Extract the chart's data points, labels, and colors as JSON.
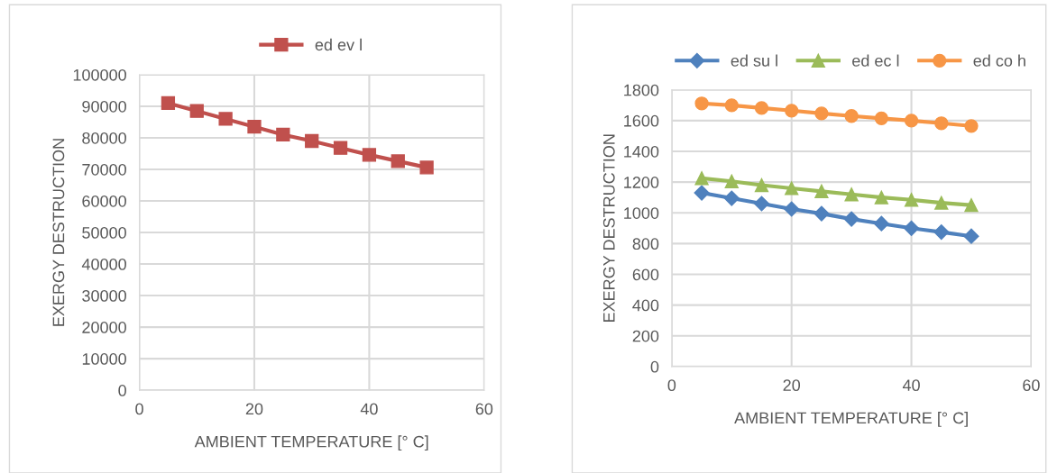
{
  "chart_data": [
    {
      "type": "line",
      "xlabel": "AMBIENT TEMPERATURE [° C]",
      "ylabel": "EXERGY DESTRUCTION",
      "x": [
        5,
        10,
        15,
        20,
        25,
        30,
        35,
        40,
        45,
        50
      ],
      "series": [
        {
          "name": "ed ev l",
          "color": "#c0504d",
          "marker": "square",
          "values": [
            91000,
            88500,
            86000,
            83500,
            81000,
            79000,
            76800,
            74600,
            72600,
            70600
          ]
        }
      ],
      "xlim": [
        0,
        60
      ],
      "xticks": [
        0,
        20,
        40,
        60
      ],
      "ylim": [
        0,
        100000
      ],
      "yticks": [
        0,
        10000,
        20000,
        30000,
        40000,
        50000,
        60000,
        70000,
        80000,
        90000,
        100000
      ],
      "grid": true,
      "legend": "top",
      "line_style": "solid"
    },
    {
      "type": "line",
      "xlabel": "AMBIENT TEMPERATURE [° C]",
      "ylabel": "EXERGY DESTRUCTION",
      "x": [
        5,
        10,
        15,
        20,
        25,
        30,
        35,
        40,
        45,
        50
      ],
      "series": [
        {
          "name": "ed su l",
          "color": "#4f81bd",
          "marker": "diamond",
          "values": [
            1130,
            1095,
            1060,
            1025,
            995,
            960,
            930,
            900,
            875,
            848
          ]
        },
        {
          "name": "ed ec l",
          "color": "#9bbb59",
          "marker": "triangle",
          "values": [
            1225,
            1205,
            1180,
            1160,
            1140,
            1120,
            1100,
            1085,
            1065,
            1050
          ]
        },
        {
          "name": "ed co h",
          "color": "#f79646",
          "marker": "circle",
          "values": [
            1712,
            1700,
            1682,
            1665,
            1647,
            1630,
            1615,
            1600,
            1583,
            1565
          ]
        }
      ],
      "xlim": [
        0,
        60
      ],
      "xticks": [
        0,
        20,
        40,
        60
      ],
      "ylim": [
        0,
        1800
      ],
      "yticks": [
        0,
        200,
        400,
        600,
        800,
        1000,
        1200,
        1400,
        1600,
        1800
      ],
      "grid": true,
      "legend": "top",
      "line_style": "solid"
    }
  ]
}
